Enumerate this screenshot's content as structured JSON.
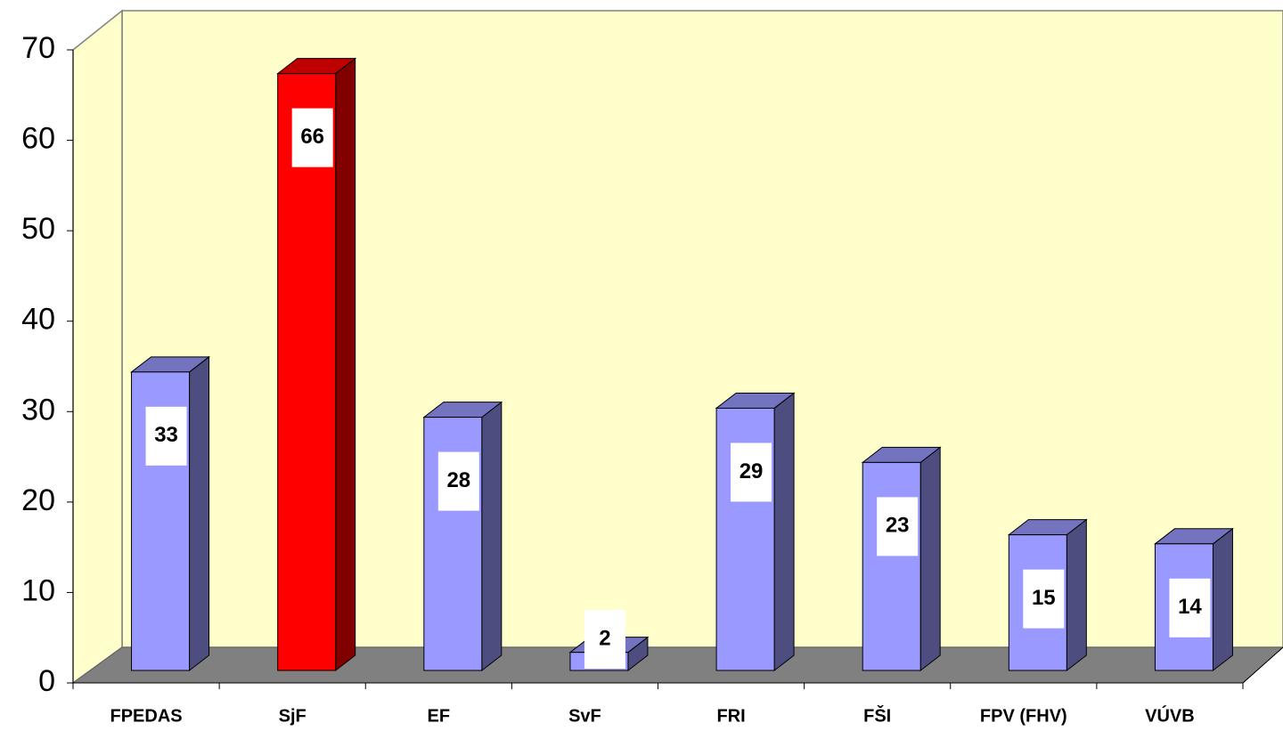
{
  "chart_data": {
    "type": "bar3d",
    "categories": [
      "FPEDAS",
      "SjF",
      "EF",
      "SvF",
      "FRI",
      "FŠI",
      "FPV (FHV)",
      "VÚVB"
    ],
    "values": [
      33,
      66,
      28,
      2,
      29,
      23,
      15,
      14
    ],
    "colors": [
      "#9999ff",
      "#ff0000",
      "#9999ff",
      "#9999ff",
      "#9999ff",
      "#9999ff",
      "#9999ff",
      "#9999ff"
    ],
    "ylim": [
      0,
      70
    ],
    "yticks": [
      0,
      10,
      20,
      30,
      40,
      50,
      60,
      70
    ]
  }
}
